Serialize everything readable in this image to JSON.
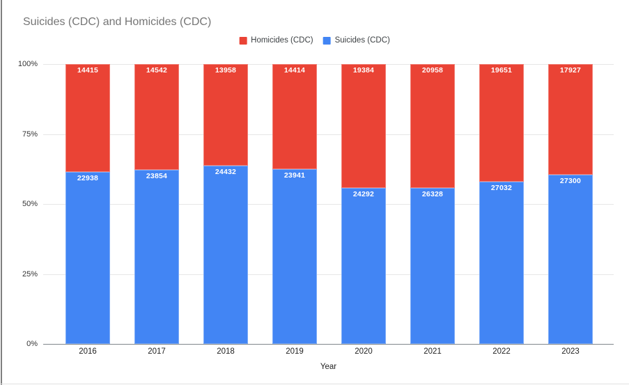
{
  "chart": {
    "title": "Suicides (CDC) and Homicides (CDC)",
    "title_color": "#757575",
    "background": "#ffffff",
    "axis_baseline_color": "#80868b",
    "gridline_color": "#e6e6e6"
  },
  "chart_data": {
    "type": "bar",
    "stacked": "percent",
    "title": "Suicides (CDC) and Homicides (CDC)",
    "categories": [
      "2016",
      "2017",
      "2018",
      "2019",
      "2020",
      "2021",
      "2022",
      "2023"
    ],
    "series": [
      {
        "name": "Homicides (CDC)",
        "color": "#EA4335",
        "stack_position": "top",
        "values": [
          14415,
          14542,
          13958,
          14414,
          19384,
          20958,
          19651,
          17927
        ]
      },
      {
        "name": "Suicides (CDC)",
        "color": "#4285F4",
        "stack_position": "bottom",
        "values": [
          22938,
          23854,
          24432,
          23941,
          24292,
          26328,
          27032,
          27300
        ]
      }
    ],
    "xlabel": "Year",
    "ylabel": "",
    "ylim": [
      0,
      100
    ],
    "yticks": [
      {
        "value": 0,
        "label": "0%"
      },
      {
        "value": 25,
        "label": "25%"
      },
      {
        "value": 50,
        "label": "50%"
      },
      {
        "value": 75,
        "label": "75%"
      },
      {
        "value": 100,
        "label": "100%"
      }
    ],
    "grid": true,
    "legend_position": "top",
    "data_labels": "white-inside-top"
  }
}
